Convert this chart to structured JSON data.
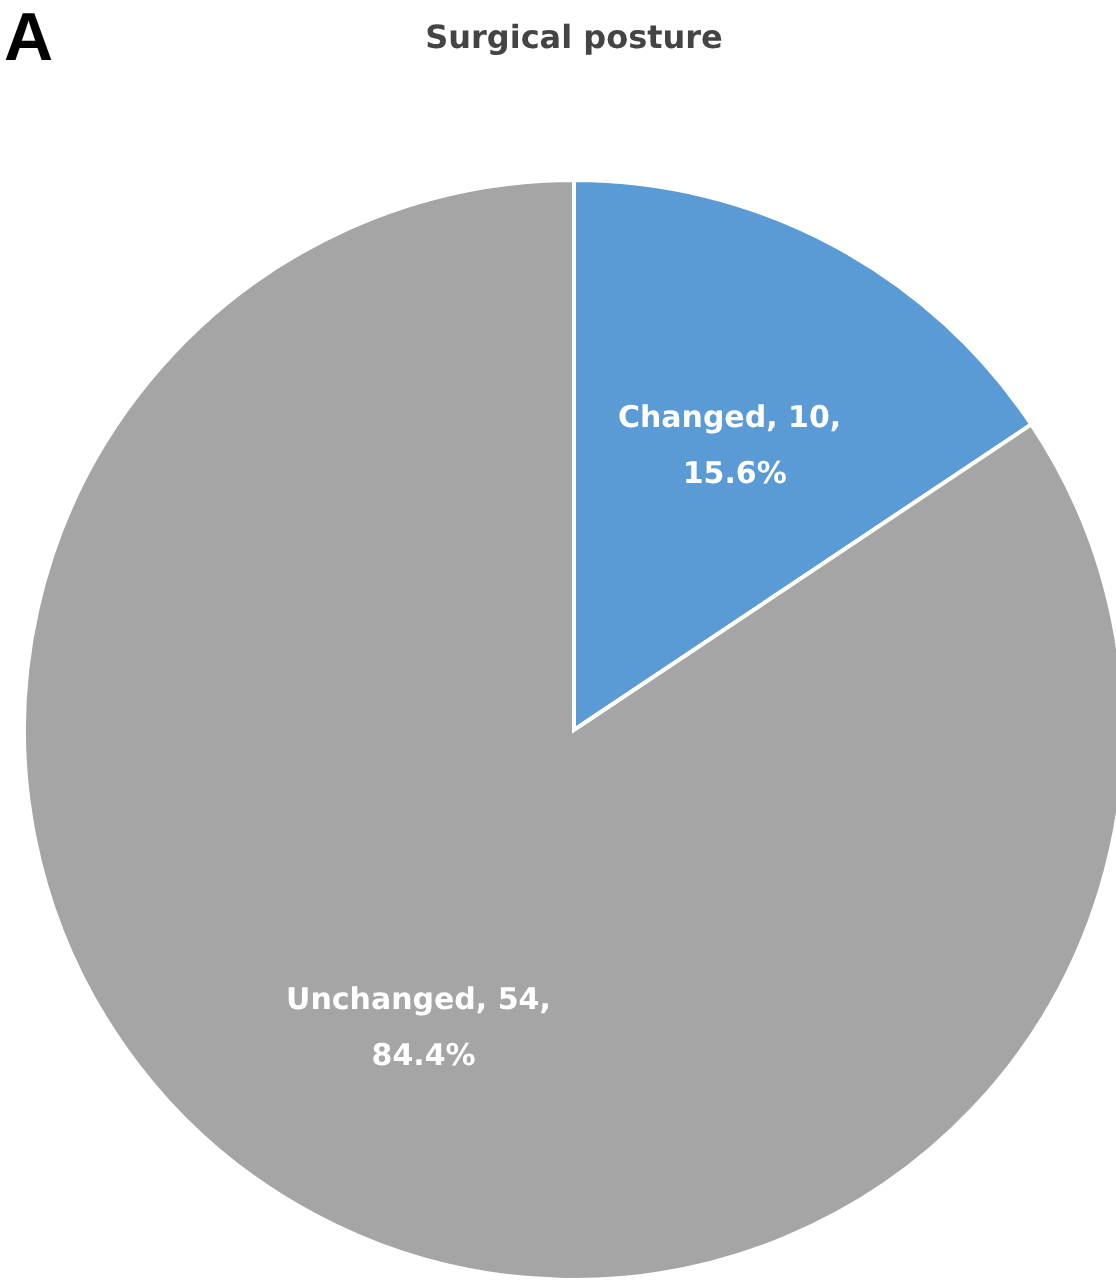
{
  "chart_data": {
    "type": "pie",
    "title": "Surgical posture",
    "annotations": [
      "A"
    ],
    "categories": [
      "Changed",
      "Unchanged"
    ],
    "values": [
      10,
      54
    ],
    "colors": [
      "#5b9bd5",
      "#a5a5a5"
    ],
    "value_labels": [
      ", 10, 15.6%",
      ", 54, 84.4%"
    ]
  }
}
